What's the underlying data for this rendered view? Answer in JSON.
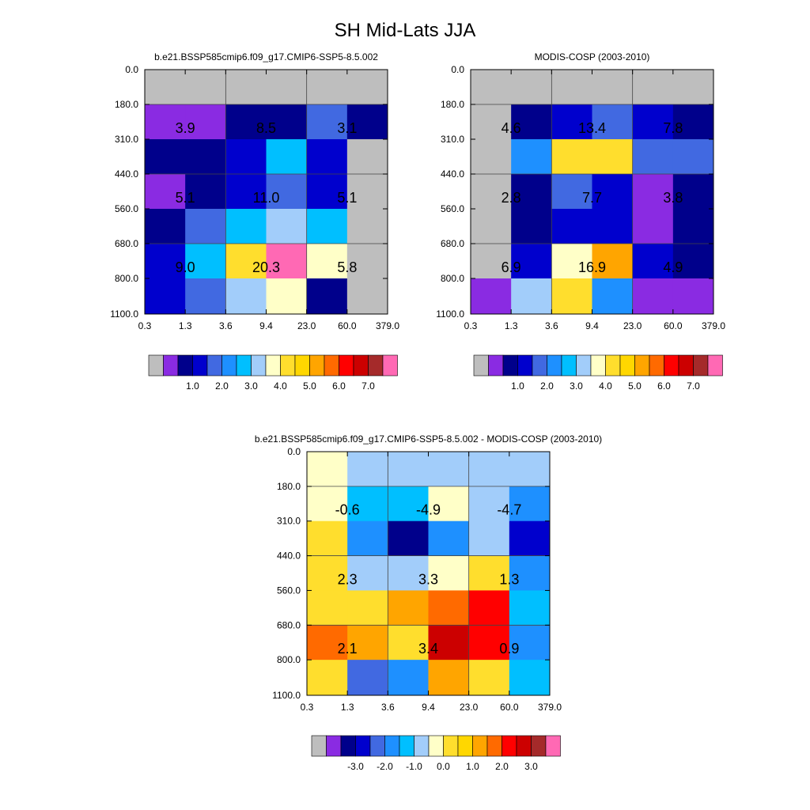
{
  "main_title": "SH Mid-Lats JJA",
  "palette": {
    "missing": "#bebebe",
    "colors": [
      "#8a2be2",
      "#00008b",
      "#0000cd",
      "#4169e1",
      "#1e90ff",
      "#00bfff",
      "#a2cdfa",
      "#ffffc8",
      "#ffde2d",
      "#ffd700",
      "#ffa500",
      "#ff6a00",
      "#ff0000",
      "#cc0000",
      "#a52a2a",
      "#ff69b4"
    ]
  },
  "x_ticks": [
    "0.3",
    "1.3",
    "3.6",
    "9.4",
    "23.0",
    "60.0",
    "379.0"
  ],
  "y_ticks": [
    "0.0",
    "180.0",
    "310.0",
    "440.0",
    "560.0",
    "680.0",
    "800.0",
    "1100.0"
  ],
  "chart_data": [
    {
      "type": "heatmap",
      "title": "b.e21.BSSP585cmip6.f09_g17.CMIP6-SSP5-8.5.002",
      "xlabel": "",
      "ylabel": "",
      "colorbar_labels": [
        "1.0",
        "2.0",
        "3.0",
        "4.0",
        "5.0",
        "6.0",
        "7.0"
      ],
      "cells": [
        [
          -1,
          -1,
          -1,
          -1,
          -1,
          -1
        ],
        [
          0,
          0,
          1,
          1,
          3,
          1
        ],
        [
          1,
          1,
          2,
          5,
          2,
          -1
        ],
        [
          0,
          1,
          2,
          3,
          2,
          -1
        ],
        [
          1,
          3,
          5,
          6,
          5,
          -1
        ],
        [
          2,
          5,
          8,
          15,
          7,
          -1
        ],
        [
          2,
          3,
          6,
          7,
          1,
          -1
        ]
      ],
      "box_labels": [
        [
          "3.9",
          "8.5",
          "3.1"
        ],
        [
          "5.1",
          "11.0",
          "5.1"
        ],
        [
          "9.0",
          "20.3",
          "5.8"
        ]
      ]
    },
    {
      "type": "heatmap",
      "title": "MODIS-COSP (2003-2010)",
      "xlabel": "",
      "ylabel": "",
      "colorbar_labels": [
        "1.0",
        "2.0",
        "3.0",
        "4.0",
        "5.0",
        "6.0",
        "7.0"
      ],
      "cells": [
        [
          -1,
          -1,
          -1,
          -1,
          -1,
          -1
        ],
        [
          -1,
          1,
          2,
          3,
          2,
          1
        ],
        [
          -1,
          4,
          8,
          8,
          3,
          3
        ],
        [
          -1,
          1,
          3,
          2,
          0,
          1
        ],
        [
          -1,
          1,
          2,
          2,
          0,
          1
        ],
        [
          -1,
          2,
          7,
          10,
          2,
          1
        ],
        [
          0,
          6,
          8,
          4,
          0,
          0
        ]
      ],
      "box_labels": [
        [
          "4.6",
          "13.4",
          "7.8"
        ],
        [
          "2.8",
          "7.7",
          "3.8"
        ],
        [
          "6.9",
          "16.9",
          "4.9"
        ]
      ]
    },
    {
      "type": "heatmap",
      "title": "b.e21.BSSP585cmip6.f09_g17.CMIP6-SSP5-8.5.002 - MODIS-COSP (2003-2010)",
      "xlabel": "",
      "ylabel": "",
      "colorbar_labels": [
        "-3.0",
        "-2.0",
        "-1.0",
        "0.0",
        "1.0",
        "2.0",
        "3.0"
      ],
      "cells": [
        [
          7,
          6,
          6,
          6,
          6,
          6
        ],
        [
          7,
          5,
          5,
          7,
          6,
          4
        ],
        [
          8,
          4,
          1,
          4,
          6,
          2
        ],
        [
          8,
          6,
          6,
          7,
          8,
          4
        ],
        [
          8,
          8,
          10,
          11,
          12,
          5
        ],
        [
          11,
          10,
          8,
          13,
          12,
          4
        ],
        [
          8,
          3,
          4,
          10,
          8,
          5
        ]
      ],
      "box_labels": [
        [
          "-0.6",
          "-4.9",
          "-4.7"
        ],
        [
          "2.3",
          "3.3",
          "1.3"
        ],
        [
          "2.1",
          "3.4",
          "0.9"
        ]
      ]
    }
  ]
}
